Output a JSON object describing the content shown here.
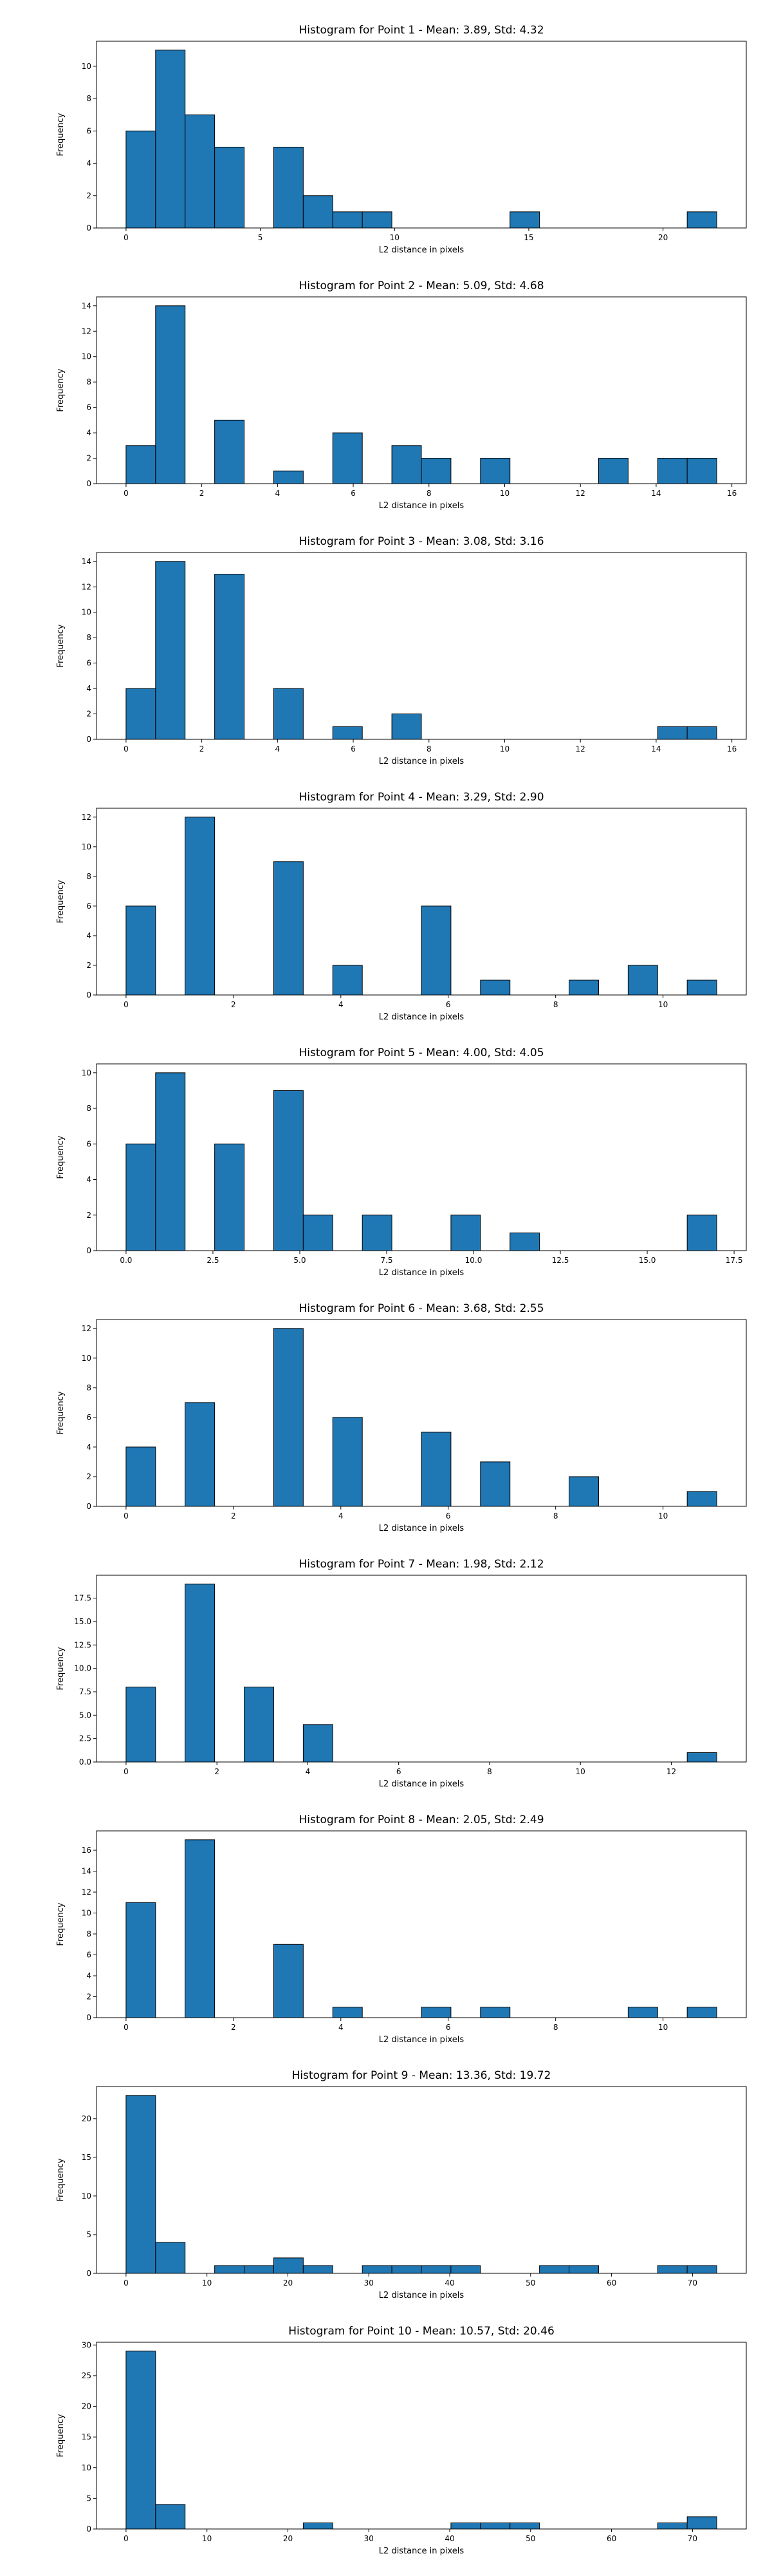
{
  "chart_data": [
    {
      "type": "bar",
      "title": "Histogram for Point 1 - Mean: 3.89, Std: 4.32",
      "xlabel": "L2 distance in pixels",
      "ylabel": "Frequency",
      "xlim": [
        -1.1,
        23.1
      ],
      "ylim": [
        0,
        11.55
      ],
      "xticks": [
        0,
        5,
        10,
        15,
        20
      ],
      "xtick_labels": [
        "0",
        "5",
        "10",
        "15",
        "20"
      ],
      "yticks": [
        0,
        2,
        4,
        6,
        8,
        10
      ],
      "ytick_labels": [
        "0",
        "2",
        "4",
        "6",
        "8",
        "10"
      ],
      "bin_edges": [
        0.0,
        1.1,
        2.2,
        3.3,
        4.4,
        5.5,
        6.6,
        7.7,
        8.8,
        9.9,
        11.0,
        12.1,
        13.2,
        14.3,
        15.4,
        16.5,
        17.6,
        18.7,
        19.8,
        20.9,
        22.0
      ],
      "values": [
        6,
        11,
        7,
        5,
        0,
        5,
        2,
        1,
        1,
        0,
        0,
        0,
        0,
        1,
        0,
        0,
        0,
        0,
        0,
        1
      ]
    },
    {
      "type": "bar",
      "title": "Histogram for Point 2 - Mean: 5.09, Std: 4.68",
      "xlabel": "L2 distance in pixels",
      "ylabel": "Frequency",
      "xlim": [
        -0.78,
        16.38
      ],
      "ylim": [
        0,
        14.7
      ],
      "xticks": [
        0,
        2,
        4,
        6,
        8,
        10,
        12,
        14,
        16
      ],
      "xtick_labels": [
        "0",
        "2",
        "4",
        "6",
        "8",
        "10",
        "12",
        "14",
        "16"
      ],
      "yticks": [
        0,
        2,
        4,
        6,
        8,
        10,
        12,
        14
      ],
      "ytick_labels": [
        "0",
        "2",
        "4",
        "6",
        "8",
        "10",
        "12",
        "14"
      ],
      "bin_edges": [
        0.0,
        0.78,
        1.56,
        2.34,
        3.12,
        3.9,
        4.68,
        5.46,
        6.24,
        7.02,
        7.8,
        8.58,
        9.36,
        10.14,
        10.92,
        11.7,
        12.48,
        13.26,
        14.04,
        14.82,
        15.6
      ],
      "values": [
        3,
        14,
        0,
        5,
        0,
        1,
        0,
        4,
        0,
        3,
        2,
        0,
        2,
        0,
        0,
        0,
        2,
        0,
        2,
        2
      ]
    },
    {
      "type": "bar",
      "title": "Histogram for Point 3 - Mean: 3.08, Std: 3.16",
      "xlabel": "L2 distance in pixels",
      "ylabel": "Frequency",
      "xlim": [
        -0.78,
        16.38
      ],
      "ylim": [
        0,
        14.7
      ],
      "xticks": [
        0,
        2,
        4,
        6,
        8,
        10,
        12,
        14,
        16
      ],
      "xtick_labels": [
        "0",
        "2",
        "4",
        "6",
        "8",
        "10",
        "12",
        "14",
        "16"
      ],
      "yticks": [
        0,
        2,
        4,
        6,
        8,
        10,
        12,
        14
      ],
      "ytick_labels": [
        "0",
        "2",
        "4",
        "6",
        "8",
        "10",
        "12",
        "14"
      ],
      "bin_edges": [
        0.0,
        0.78,
        1.56,
        2.34,
        3.12,
        3.9,
        4.68,
        5.46,
        6.24,
        7.02,
        7.8,
        8.58,
        9.36,
        10.14,
        10.92,
        11.7,
        12.48,
        13.26,
        14.04,
        14.82,
        15.6
      ],
      "values": [
        4,
        14,
        0,
        13,
        0,
        4,
        0,
        1,
        0,
        2,
        0,
        0,
        0,
        0,
        0,
        0,
        0,
        0,
        1,
        1
      ]
    },
    {
      "type": "bar",
      "title": "Histogram for Point 4 - Mean: 3.29, Std: 2.90",
      "xlabel": "L2 distance in pixels",
      "ylabel": "Frequency",
      "xlim": [
        -0.55,
        11.55
      ],
      "ylim": [
        0,
        12.6
      ],
      "xticks": [
        0,
        2,
        4,
        6,
        8,
        10
      ],
      "xtick_labels": [
        "0",
        "2",
        "4",
        "6",
        "8",
        "10"
      ],
      "yticks": [
        0,
        2,
        4,
        6,
        8,
        10,
        12
      ],
      "ytick_labels": [
        "0",
        "2",
        "4",
        "6",
        "8",
        "10",
        "12"
      ],
      "bin_edges": [
        0.0,
        0.55,
        1.1,
        1.65,
        2.2,
        2.75,
        3.3,
        3.85,
        4.4,
        4.95,
        5.5,
        6.05,
        6.6,
        7.15,
        7.7,
        8.25,
        8.8,
        9.35,
        9.9,
        10.45,
        11.0
      ],
      "values": [
        6,
        0,
        12,
        0,
        0,
        9,
        0,
        2,
        0,
        0,
        6,
        0,
        1,
        0,
        0,
        1,
        0,
        2,
        0,
        1
      ]
    },
    {
      "type": "bar",
      "title": "Histogram for Point 5 - Mean: 4.00, Std: 4.05",
      "xlabel": "L2 distance in pixels",
      "ylabel": "Frequency",
      "xlim": [
        -0.85,
        17.85
      ],
      "ylim": [
        0,
        10.5
      ],
      "xticks": [
        0,
        2.5,
        5,
        7.5,
        10,
        12.5,
        15,
        17.5
      ],
      "xtick_labels": [
        "0.0",
        "2.5",
        "5.0",
        "7.5",
        "10.0",
        "12.5",
        "15.0",
        "17.5"
      ],
      "yticks": [
        0,
        2,
        4,
        6,
        8,
        10
      ],
      "ytick_labels": [
        "0",
        "2",
        "4",
        "6",
        "8",
        "10"
      ],
      "bin_edges": [
        0.0,
        0.85,
        1.7,
        2.55,
        3.4,
        4.25,
        5.1,
        5.95,
        6.8,
        7.65,
        8.5,
        9.35,
        10.2,
        11.05,
        11.9,
        12.75,
        13.6,
        14.45,
        15.3,
        16.15,
        17.0
      ],
      "values": [
        6,
        10,
        0,
        6,
        0,
        9,
        2,
        0,
        2,
        0,
        0,
        2,
        0,
        1,
        0,
        0,
        0,
        0,
        0,
        2
      ]
    },
    {
      "type": "bar",
      "title": "Histogram for Point 6 - Mean: 3.68, Std: 2.55",
      "xlabel": "L2 distance in pixels",
      "ylabel": "Frequency",
      "xlim": [
        -0.55,
        11.55
      ],
      "ylim": [
        0,
        12.6
      ],
      "xticks": [
        0,
        2,
        4,
        6,
        8,
        10
      ],
      "xtick_labels": [
        "0",
        "2",
        "4",
        "6",
        "8",
        "10"
      ],
      "yticks": [
        0,
        2,
        4,
        6,
        8,
        10,
        12
      ],
      "ytick_labels": [
        "0",
        "2",
        "4",
        "6",
        "8",
        "10",
        "12"
      ],
      "bin_edges": [
        0.0,
        0.55,
        1.1,
        1.65,
        2.2,
        2.75,
        3.3,
        3.85,
        4.4,
        4.95,
        5.5,
        6.05,
        6.6,
        7.15,
        7.7,
        8.25,
        8.8,
        9.35,
        9.9,
        10.45,
        11.0
      ],
      "values": [
        4,
        0,
        7,
        0,
        0,
        12,
        0,
        6,
        0,
        0,
        5,
        0,
        3,
        0,
        0,
        2,
        0,
        0,
        0,
        1
      ]
    },
    {
      "type": "bar",
      "title": "Histogram for Point 7 - Mean: 1.98, Std: 2.12",
      "xlabel": "L2 distance in pixels",
      "ylabel": "Frequency",
      "xlim": [
        -0.65,
        13.65
      ],
      "ylim": [
        0,
        19.95
      ],
      "xticks": [
        0,
        2,
        4,
        6,
        8,
        10,
        12
      ],
      "xtick_labels": [
        "0",
        "2",
        "4",
        "6",
        "8",
        "10",
        "12"
      ],
      "yticks": [
        0,
        2.5,
        5,
        7.5,
        10,
        12.5,
        15,
        17.5
      ],
      "ytick_labels": [
        "0.0",
        "2.5",
        "5.0",
        "7.5",
        "10.0",
        "12.5",
        "15.0",
        "17.5"
      ],
      "bin_edges": [
        0.0,
        0.65,
        1.3,
        1.95,
        2.6,
        3.25,
        3.9,
        4.55,
        5.2,
        5.85,
        6.5,
        7.15,
        7.8,
        8.45,
        9.1,
        9.75,
        10.4,
        11.05,
        11.7,
        12.35,
        13.0
      ],
      "values": [
        8,
        0,
        19,
        0,
        8,
        0,
        4,
        0,
        0,
        0,
        0,
        0,
        0,
        0,
        0,
        0,
        0,
        0,
        0,
        1
      ]
    },
    {
      "type": "bar",
      "title": "Histogram for Point 8 - Mean: 2.05, Std: 2.49",
      "xlabel": "L2 distance in pixels",
      "ylabel": "Frequency",
      "xlim": [
        -0.55,
        11.55
      ],
      "ylim": [
        0,
        17.85
      ],
      "xticks": [
        0,
        2,
        4,
        6,
        8,
        10
      ],
      "xtick_labels": [
        "0",
        "2",
        "4",
        "6",
        "8",
        "10"
      ],
      "yticks": [
        0,
        2,
        4,
        6,
        8,
        10,
        12,
        14,
        16
      ],
      "ytick_labels": [
        "0",
        "2",
        "4",
        "6",
        "8",
        "10",
        "12",
        "14",
        "16"
      ],
      "bin_edges": [
        0.0,
        0.55,
        1.1,
        1.65,
        2.2,
        2.75,
        3.3,
        3.85,
        4.4,
        4.95,
        5.5,
        6.05,
        6.6,
        7.15,
        7.7,
        8.25,
        8.8,
        9.35,
        9.9,
        10.45,
        11.0
      ],
      "values": [
        11,
        0,
        17,
        0,
        0,
        7,
        0,
        1,
        0,
        0,
        1,
        0,
        1,
        0,
        0,
        0,
        0,
        1,
        0,
        1
      ]
    },
    {
      "type": "bar",
      "title": "Histogram for Point 9 - Mean: 13.36, Std: 19.72",
      "xlabel": "L2 distance in pixels",
      "ylabel": "Frequency",
      "xlim": [
        -3.65,
        76.65
      ],
      "ylim": [
        0,
        24.15
      ],
      "xticks": [
        0,
        10,
        20,
        30,
        40,
        50,
        60,
        70
      ],
      "xtick_labels": [
        "0",
        "10",
        "20",
        "30",
        "40",
        "50",
        "60",
        "70"
      ],
      "yticks": [
        0,
        5,
        10,
        15,
        20
      ],
      "ytick_labels": [
        "0",
        "5",
        "10",
        "15",
        "20"
      ],
      "bin_edges": [
        0.0,
        3.65,
        7.3,
        10.95,
        14.6,
        18.25,
        21.9,
        25.55,
        29.2,
        32.85,
        36.5,
        40.15,
        43.8,
        47.45,
        51.1,
        54.75,
        58.4,
        62.05,
        65.7,
        69.35,
        73.0
      ],
      "values": [
        23,
        4,
        0,
        1,
        1,
        2,
        1,
        0,
        1,
        1,
        1,
        1,
        0,
        0,
        1,
        1,
        0,
        0,
        1,
        1
      ]
    },
    {
      "type": "bar",
      "title": "Histogram for Point 10 - Mean: 10.57, Std: 20.46",
      "xlabel": "L2 distance in pixels",
      "ylabel": "Frequency",
      "xlim": [
        -3.65,
        76.65
      ],
      "ylim": [
        0,
        30.45
      ],
      "xticks": [
        0,
        10,
        20,
        30,
        40,
        50,
        60,
        70
      ],
      "xtick_labels": [
        "0",
        "10",
        "20",
        "30",
        "40",
        "50",
        "60",
        "70"
      ],
      "yticks": [
        0,
        5,
        10,
        15,
        20,
        25,
        30
      ],
      "ytick_labels": [
        "0",
        "5",
        "10",
        "15",
        "20",
        "25",
        "30"
      ],
      "bin_edges": [
        0.0,
        3.65,
        7.3,
        10.95,
        14.6,
        18.25,
        21.9,
        25.55,
        29.2,
        32.85,
        36.5,
        40.15,
        43.8,
        47.45,
        51.1,
        54.75,
        58.4,
        62.05,
        65.7,
        69.35,
        73.0
      ],
      "values": [
        29,
        4,
        0,
        0,
        0,
        0,
        1,
        0,
        0,
        0,
        0,
        1,
        1,
        1,
        0,
        0,
        0,
        0,
        1,
        2
      ]
    }
  ]
}
